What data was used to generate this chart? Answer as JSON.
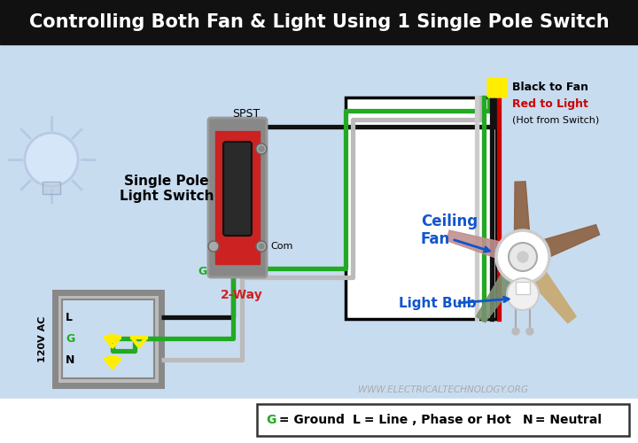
{
  "title": "Controlling Both Fan & Light Using 1 Single Pole Switch",
  "title_color": "#FFFFFF",
  "title_bg": "#111111",
  "bg_color": "#C8DCF0",
  "wire_black": "#111111",
  "wire_green": "#22AA22",
  "wire_red": "#CC0000",
  "wire_yellow": "#FFEE00",
  "wire_white": "#EEEEEE",
  "legend_G_color": "#22AA22",
  "watermark": "WWW.ELECTRICALTECHNOLOGY.ORG",
  "label_switch": "Single Pole\nLight Switch",
  "label_2way": "2-Way",
  "label_spst": "SPST",
  "label_com": "Com",
  "label_G": "G",
  "label_fan": "Ceiling\nFan",
  "label_lightbulb": "Light Bulb",
  "label_black_to_fan": "Black to Fan",
  "label_red_to_light": "Red to Light",
  "label_hot_from_switch": "(Hot from Switch)",
  "label_120VAC": "120V AC",
  "label_L": "L",
  "label_GG": "G",
  "label_N": "N",
  "switch_red": "#CC2222",
  "switch_gray": "#777777",
  "switch_dark": "#333333",
  "panel_gray": "#AAAAAA",
  "fan_blue": "#1155CC",
  "bottom_bg": "#FFFFFF"
}
